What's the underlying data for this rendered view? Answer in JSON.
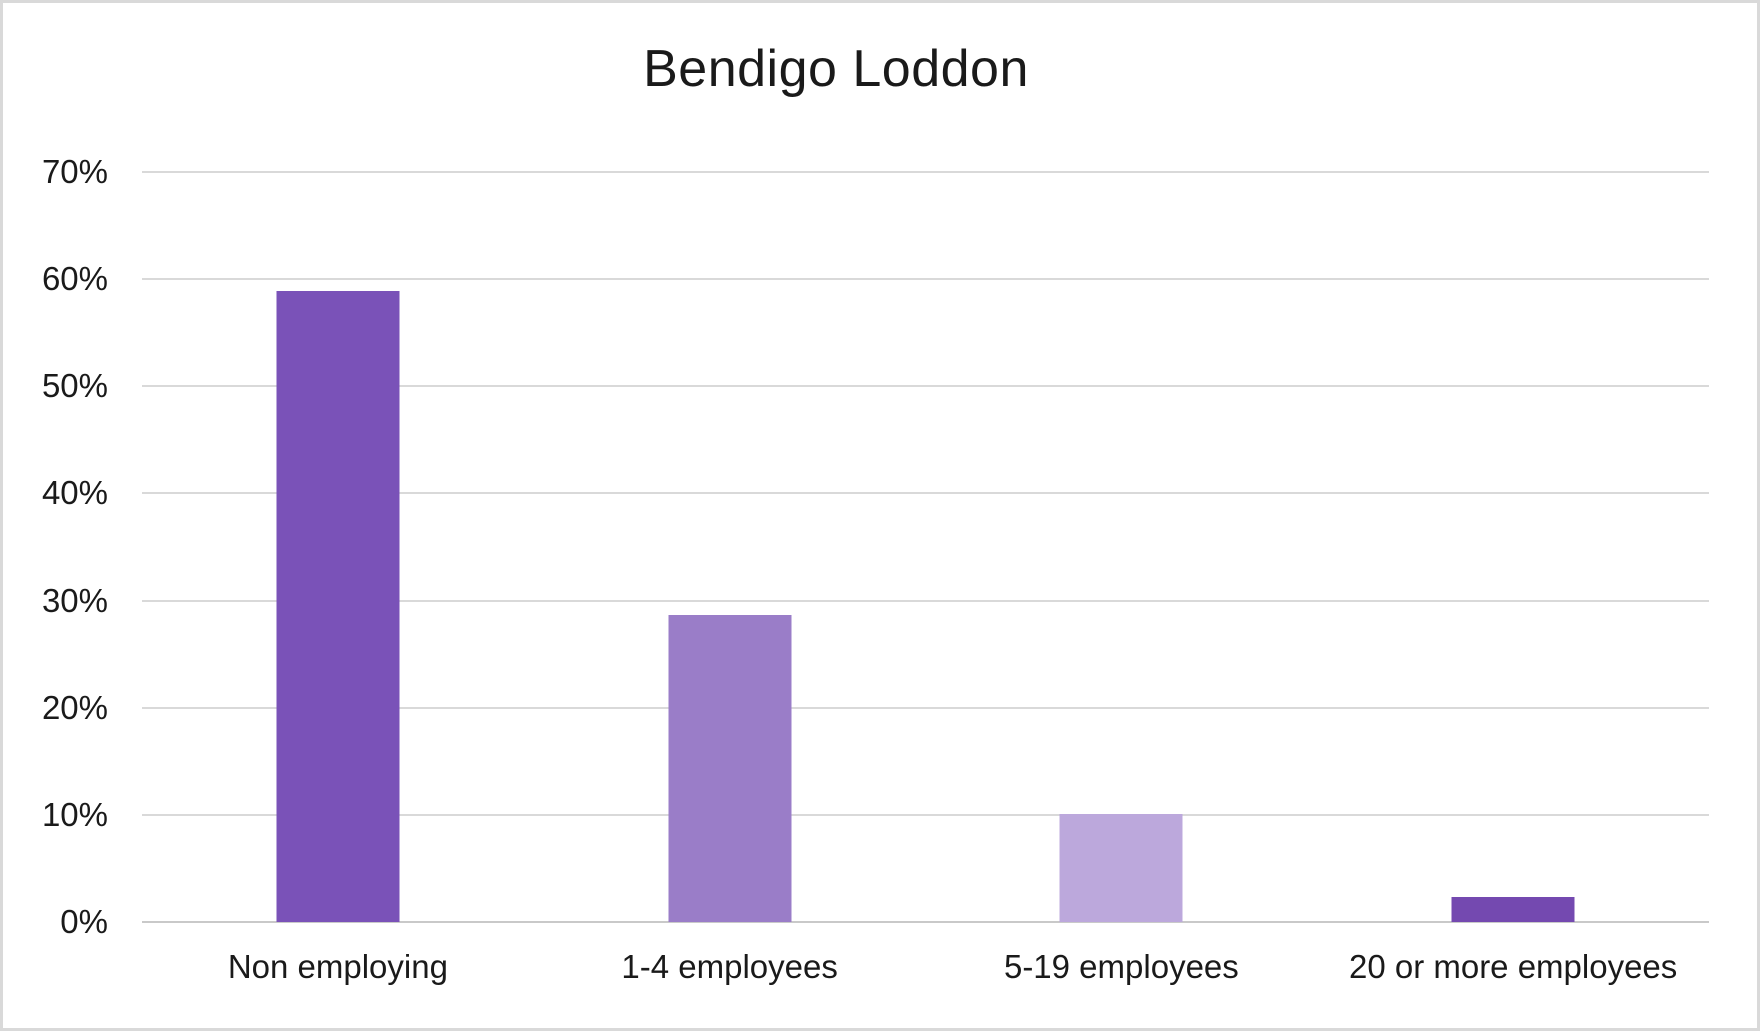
{
  "chart_data": {
    "type": "bar",
    "title": "Bendigo Loddon",
    "categories": [
      "Non employing",
      "1-4 employees",
      "5-19 employees",
      "20 or more employees"
    ],
    "values": [
      58.9,
      28.7,
      10.1,
      2.3
    ],
    "value_unit": "%",
    "ylim": [
      0,
      70
    ],
    "ytick_step": 10,
    "ytick_labels": [
      "0%",
      "10%",
      "20%",
      "30%",
      "40%",
      "50%",
      "60%",
      "70%"
    ],
    "grid": true,
    "legend": "none",
    "bar_colors": [
      "#7a52b8",
      "#9a7dc8",
      "#bca8dc",
      "#7449b0"
    ],
    "colors": {
      "gridline": "#d9d9d9",
      "axis_line": "#c9c9c9",
      "text": "#1a1a1a",
      "background": "#ffffff",
      "frame_border": "#d9d9d9"
    }
  }
}
